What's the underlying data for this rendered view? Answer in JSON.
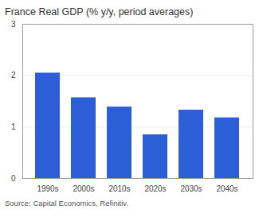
{
  "chart_data": {
    "type": "bar",
    "title": "France Real GDP (% y/y, period averages)",
    "caption": "Source: Capital Economics, Refinitiv.",
    "categories": [
      "1990s",
      "2000s",
      "2010s",
      "2020s",
      "2030s",
      "2040s"
    ],
    "values": [
      2.05,
      1.57,
      1.39,
      0.85,
      1.33,
      1.18
    ],
    "color": "#2c5ed8",
    "ylim": [
      0,
      3
    ],
    "yticks": [
      0,
      1,
      2,
      3
    ],
    "grid": true
  }
}
